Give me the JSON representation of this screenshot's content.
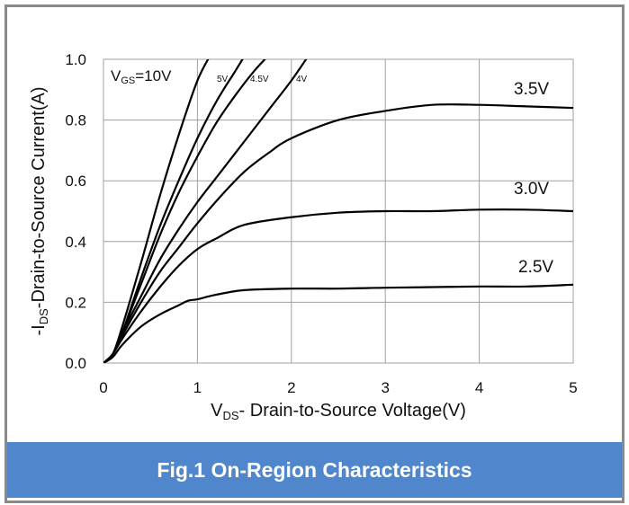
{
  "caption": "Fig.1 On-Region Characteristics",
  "colors": {
    "frame": "#8a8a8a",
    "caption_bg": "#4f86cc",
    "curve": "#000000",
    "grid": "#a0a0a0"
  },
  "chart_data": {
    "type": "line",
    "title": "",
    "xlabel": {
      "main": "V",
      "sub": "DS",
      "rest": "- Drain-to-Source Voltage(V)"
    },
    "ylabel": {
      "pre": "-I",
      "sub": "DS",
      "rest": "-Drain-to-Source Current(A)"
    },
    "xlim": [
      0,
      5
    ],
    "ylim": [
      0,
      1.0
    ],
    "x_ticks": [
      "0",
      "1",
      "2",
      "3",
      "4",
      "5"
    ],
    "y_ticks": [
      "0.0",
      "0.2",
      "0.4",
      "0.6",
      "0.8",
      "1.0"
    ],
    "grid": true,
    "curve_labels": {
      "vgs_main": "V",
      "vgs_sub": "GS",
      "vgs_rest": "=10V",
      "v5": "5V",
      "v45": "4.5V",
      "v4": "4V",
      "v35": "3.5V",
      "v30": "3.0V",
      "v25": "2.5V"
    },
    "series": [
      {
        "name": "VGS=10V",
        "x": [
          0,
          0.1,
          0.2,
          0.4,
          0.6,
          0.8,
          1.0,
          1.15
        ],
        "y": [
          0,
          0.03,
          0.12,
          0.33,
          0.55,
          0.75,
          0.93,
          1.02
        ]
      },
      {
        "name": "5V",
        "x": [
          0,
          0.1,
          0.2,
          0.4,
          0.6,
          0.8,
          1.0,
          1.2,
          1.4,
          1.52
        ],
        "y": [
          0,
          0.03,
          0.1,
          0.28,
          0.45,
          0.6,
          0.74,
          0.86,
          0.96,
          1.02
        ]
      },
      {
        "name": "4.5V",
        "x": [
          0,
          0.1,
          0.2,
          0.4,
          0.6,
          0.8,
          1.0,
          1.2,
          1.4,
          1.6,
          1.78
        ],
        "y": [
          0,
          0.03,
          0.1,
          0.26,
          0.42,
          0.56,
          0.68,
          0.79,
          0.88,
          0.96,
          1.02
        ]
      },
      {
        "name": "4V",
        "x": [
          0,
          0.1,
          0.2,
          0.4,
          0.6,
          0.8,
          1.0,
          1.2,
          1.4,
          1.6,
          1.8,
          2.0,
          2.2
        ],
        "y": [
          0,
          0.03,
          0.1,
          0.22,
          0.34,
          0.44,
          0.53,
          0.61,
          0.69,
          0.77,
          0.85,
          0.93,
          1.02
        ]
      },
      {
        "name": "3.5V",
        "x": [
          0,
          0.1,
          0.2,
          0.4,
          0.6,
          0.8,
          1.0,
          1.25,
          1.5,
          1.75,
          2.0,
          2.5,
          3.0,
          3.5,
          4.0,
          4.5,
          5.0
        ],
        "y": [
          0,
          0.03,
          0.09,
          0.2,
          0.3,
          0.38,
          0.46,
          0.55,
          0.63,
          0.69,
          0.74,
          0.8,
          0.83,
          0.85,
          0.85,
          0.845,
          0.84
        ]
      },
      {
        "name": "3.0V",
        "x": [
          0,
          0.1,
          0.2,
          0.4,
          0.6,
          0.8,
          1.0,
          1.2,
          1.5,
          2.0,
          2.5,
          3.0,
          3.5,
          4.0,
          4.5,
          5.0
        ],
        "y": [
          0,
          0.03,
          0.08,
          0.17,
          0.25,
          0.32,
          0.375,
          0.41,
          0.455,
          0.48,
          0.495,
          0.5,
          0.5,
          0.505,
          0.505,
          0.5
        ]
      },
      {
        "name": "2.5V",
        "x": [
          0,
          0.1,
          0.2,
          0.4,
          0.6,
          0.8,
          0.9,
          1.0,
          1.2,
          1.5,
          2.0,
          2.5,
          3.0,
          3.5,
          4.0,
          4.5,
          5.0
        ],
        "y": [
          0,
          0.02,
          0.06,
          0.12,
          0.16,
          0.19,
          0.205,
          0.21,
          0.225,
          0.24,
          0.245,
          0.245,
          0.248,
          0.25,
          0.252,
          0.252,
          0.258
        ]
      }
    ]
  }
}
